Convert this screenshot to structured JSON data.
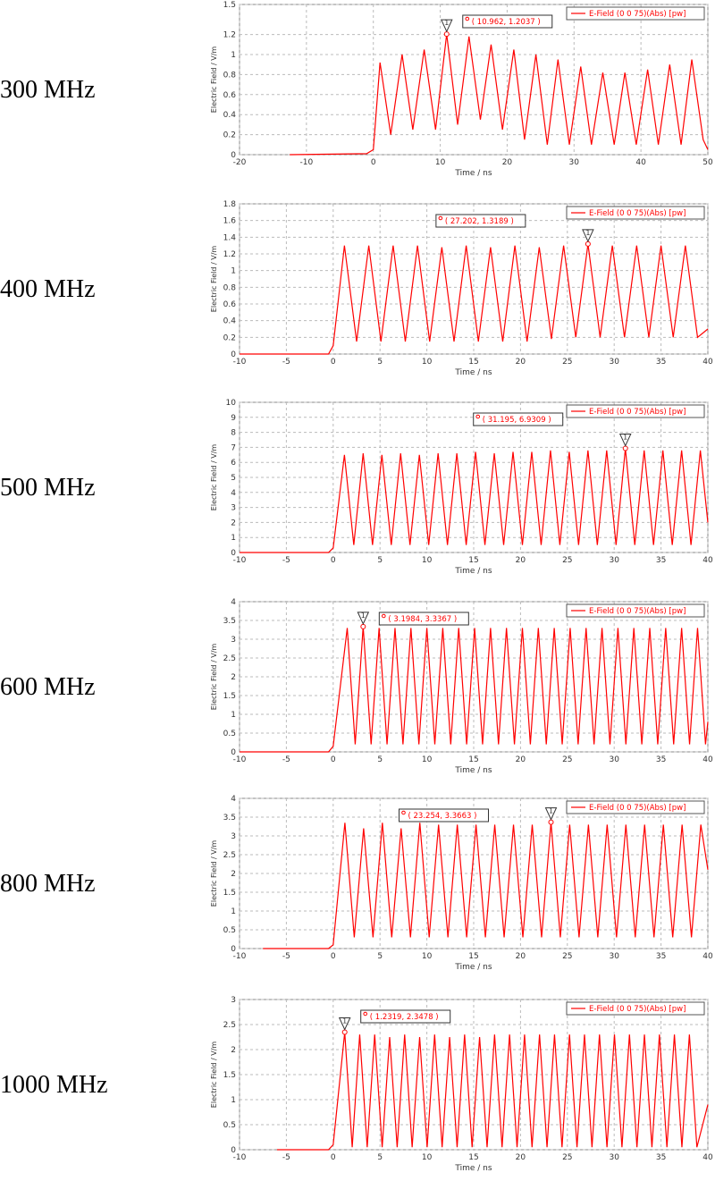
{
  "chart_data": [
    {
      "type": "line",
      "row_label": "300 MHz",
      "xlabel": "Time / ns",
      "ylabel": "Electric Field / V/m",
      "xlim": [
        -20,
        50
      ],
      "xticks": [
        -20,
        -10,
        0,
        10,
        20,
        30,
        40,
        50
      ],
      "ylim": [
        0,
        1.5
      ],
      "yticks": [
        0,
        0.2,
        0.4,
        0.6,
        0.8,
        1,
        1.2,
        1.5
      ],
      "grid": true,
      "series": [
        {
          "name": "E-Field (0 0 75)(Abs) [pw]",
          "color": "#ff0000",
          "x": [
            -12.5,
            -1,
            0,
            1,
            2.6,
            4.3,
            5.9,
            7.6,
            9.3,
            10.962,
            12.6,
            14.3,
            16,
            17.6,
            19.3,
            21,
            22.6,
            24.3,
            26,
            27.6,
            29.3,
            31,
            32.6,
            34.3,
            36,
            37.6,
            39.3,
            41,
            42.6,
            44.3,
            46,
            47.6,
            49.3,
            50
          ],
          "values": [
            0,
            0.01,
            0.05,
            0.92,
            0.2,
            1.0,
            0.25,
            1.05,
            0.25,
            1.2037,
            0.3,
            1.18,
            0.35,
            1.1,
            0.25,
            1.05,
            0.15,
            1.0,
            0.1,
            0.95,
            0.1,
            0.88,
            0.1,
            0.82,
            0.1,
            0.82,
            0.1,
            0.85,
            0.1,
            0.9,
            0.1,
            0.95,
            0.15,
            0.05
          ]
        }
      ],
      "marker": {
        "id": "1",
        "x": 10.962,
        "y": 1.2037,
        "label": "( 10.962, 1.2037 )"
      }
    },
    {
      "type": "line",
      "row_label": "400 MHz",
      "xlabel": "Time / ns",
      "ylabel": "Electric Field / V/m",
      "xlim": [
        -10,
        40
      ],
      "xticks": [
        -10,
        -5,
        0,
        5,
        10,
        15,
        20,
        25,
        30,
        35,
        40
      ],
      "ylim": [
        0,
        1.8
      ],
      "yticks": [
        0,
        0.2,
        0.4,
        0.6,
        0.8,
        1,
        1.2,
        1.4,
        1.6,
        1.8
      ],
      "grid": true,
      "series": [
        {
          "name": "E-Field (0 0 75)(Abs) [pw]",
          "color": "#ff0000",
          "x": [
            -10,
            -0.5,
            0,
            1.2,
            2.5,
            3.8,
            5.1,
            6.4,
            7.7,
            9.0,
            10.3,
            11.6,
            12.9,
            14.2,
            15.5,
            16.8,
            18.1,
            19.4,
            20.7,
            22.0,
            23.3,
            24.6,
            25.9,
            27.202,
            28.5,
            29.8,
            31.1,
            32.4,
            33.7,
            35.0,
            36.3,
            37.6,
            38.9,
            40
          ],
          "values": [
            0,
            0,
            0.1,
            1.3,
            0.15,
            1.3,
            0.15,
            1.3,
            0.15,
            1.3,
            0.15,
            1.28,
            0.15,
            1.3,
            0.15,
            1.28,
            0.15,
            1.3,
            0.15,
            1.28,
            0.18,
            1.3,
            0.2,
            1.3189,
            0.2,
            1.3,
            0.2,
            1.3,
            0.2,
            1.3,
            0.2,
            1.3,
            0.2,
            0.3
          ]
        }
      ],
      "marker": {
        "id": "1",
        "x": 27.202,
        "y": 1.3189,
        "label": "( 27.202, 1.3189 )"
      }
    },
    {
      "type": "line",
      "row_label": "500 MHz",
      "xlabel": "Time / ns",
      "ylabel": "Electric Field / V/m",
      "xlim": [
        -10,
        40
      ],
      "xticks": [
        -10,
        -5,
        0,
        5,
        10,
        15,
        20,
        25,
        30,
        35,
        40
      ],
      "ylim": [
        0,
        10
      ],
      "yticks": [
        0,
        1,
        2,
        3,
        4,
        5,
        6,
        7,
        8,
        9,
        10
      ],
      "grid": true,
      "series": [
        {
          "name": "E-Field (0 0 75)(Abs) [pw]",
          "color": "#ff0000",
          "x": [
            -10,
            -0.5,
            0,
            1.2,
            2.2,
            3.2,
            4.2,
            5.2,
            6.2,
            7.2,
            8.2,
            9.2,
            10.2,
            11.2,
            12.2,
            13.2,
            14.2,
            15.2,
            16.2,
            17.2,
            18.2,
            19.2,
            20.2,
            21.2,
            22.2,
            23.2,
            24.2,
            25.2,
            26.2,
            27.2,
            28.2,
            29.2,
            30.2,
            31.195,
            32.2,
            33.2,
            34.2,
            35.2,
            36.2,
            37.2,
            38.2,
            39.2,
            40
          ],
          "values": [
            0,
            0,
            0.3,
            6.5,
            0.5,
            6.6,
            0.5,
            6.5,
            0.5,
            6.6,
            0.5,
            6.5,
            0.5,
            6.6,
            0.5,
            6.6,
            0.5,
            6.7,
            0.5,
            6.6,
            0.5,
            6.7,
            0.5,
            6.7,
            0.5,
            6.8,
            0.5,
            6.7,
            0.5,
            6.8,
            0.5,
            6.8,
            0.5,
            6.9309,
            0.5,
            6.8,
            0.5,
            6.8,
            0.5,
            6.8,
            0.5,
            6.8,
            2.0
          ]
        }
      ],
      "marker": {
        "id": "1",
        "x": 31.195,
        "y": 6.9309,
        "label": "( 31.195, 6.9309 )"
      }
    },
    {
      "type": "line",
      "row_label": "600 MHz",
      "xlabel": "Time / ns",
      "ylabel": "Electric Field / V/m",
      "xlim": [
        -10,
        40
      ],
      "xticks": [
        -10,
        -5,
        0,
        5,
        10,
        15,
        20,
        25,
        30,
        35,
        40
      ],
      "ylim": [
        0,
        4
      ],
      "yticks": [
        0,
        0.5,
        1,
        1.5,
        2,
        2.5,
        3,
        3.5,
        4
      ],
      "grid": true,
      "series": [
        {
          "name": "E-Field (0 0 75)(Abs) [pw]",
          "color": "#ff0000",
          "x": [
            -10,
            -0.5,
            0,
            1.5,
            2.35,
            3.1984,
            4.05,
            4.9,
            5.75,
            6.6,
            7.45,
            8.3,
            9.15,
            10.0,
            10.85,
            11.7,
            12.55,
            13.4,
            14.25,
            15.1,
            15.95,
            16.8,
            17.65,
            18.5,
            19.35,
            20.2,
            21.05,
            21.9,
            22.75,
            23.6,
            24.45,
            25.3,
            26.15,
            27.0,
            27.85,
            28.7,
            29.55,
            30.4,
            31.25,
            32.1,
            32.95,
            33.8,
            34.65,
            35.5,
            36.35,
            37.2,
            38.05,
            38.9,
            39.75,
            40
          ],
          "values": [
            0,
            0,
            0.15,
            3.3,
            0.2,
            3.3367,
            0.2,
            3.3,
            0.2,
            3.3,
            0.2,
            3.3,
            0.2,
            3.3,
            0.2,
            3.3,
            0.2,
            3.3,
            0.2,
            3.3,
            0.2,
            3.3,
            0.2,
            3.3,
            0.2,
            3.3,
            0.2,
            3.3,
            0.2,
            3.3,
            0.2,
            3.3,
            0.2,
            3.3,
            0.2,
            3.3,
            0.2,
            3.3,
            0.2,
            3.3,
            0.2,
            3.3,
            0.2,
            3.3,
            0.2,
            3.3,
            0.2,
            3.3,
            0.2,
            0.8
          ]
        }
      ],
      "marker": {
        "id": "1",
        "x": 3.1984,
        "y": 3.3367,
        "label": "( 3.1984, 3.3367 )"
      }
    },
    {
      "type": "line",
      "row_label": "800 MHz",
      "xlabel": "Time / ns",
      "ylabel": "Electric Field / V/m",
      "xlim": [
        -10,
        40
      ],
      "xticks": [
        -10,
        -5,
        0,
        5,
        10,
        15,
        20,
        25,
        30,
        35,
        40
      ],
      "ylim": [
        0,
        4
      ],
      "yticks": [
        0,
        0.5,
        1,
        1.5,
        2,
        2.5,
        3,
        3.5,
        4
      ],
      "grid": true,
      "series": [
        {
          "name": "E-Field (0 0 75)(Abs) [pw]",
          "color": "#ff0000",
          "x": [
            -7.5,
            -0.5,
            0,
            1.25,
            2.25,
            3.25,
            4.25,
            5.25,
            6.25,
            7.25,
            8.25,
            9.25,
            10.25,
            11.25,
            12.25,
            13.25,
            14.25,
            15.25,
            16.25,
            17.25,
            18.25,
            19.25,
            20.25,
            21.25,
            22.25,
            23.254,
            24.25,
            25.25,
            26.25,
            27.25,
            28.25,
            29.25,
            30.25,
            31.25,
            32.25,
            33.25,
            34.25,
            35.25,
            36.25,
            37.25,
            38.25,
            39.25,
            40
          ],
          "values": [
            0,
            0,
            0.1,
            3.35,
            0.3,
            3.2,
            0.3,
            3.35,
            0.3,
            3.2,
            0.3,
            3.35,
            0.3,
            3.3,
            0.3,
            3.3,
            0.3,
            3.3,
            0.3,
            3.3,
            0.3,
            3.3,
            0.3,
            3.3,
            0.3,
            3.3663,
            0.3,
            3.3,
            0.3,
            3.3,
            0.3,
            3.3,
            0.3,
            3.3,
            0.3,
            3.3,
            0.3,
            3.3,
            0.3,
            3.3,
            0.3,
            3.3,
            2.1
          ]
        }
      ],
      "marker": {
        "id": "1",
        "x": 23.254,
        "y": 3.3663,
        "label": "( 23.254, 3.3663 )"
      }
    },
    {
      "type": "line",
      "row_label": "1000 MHz",
      "xlabel": "Time / ns",
      "ylabel": "Electric Field / V/m",
      "xlim": [
        -10,
        40
      ],
      "xticks": [
        -10,
        -5,
        0,
        5,
        10,
        15,
        20,
        25,
        30,
        35,
        40
      ],
      "ylim": [
        0,
        3
      ],
      "yticks": [
        0,
        0.5,
        1,
        1.5,
        2,
        2.5,
        3
      ],
      "grid": true,
      "series": [
        {
          "name": "E-Field (0 0 75)(Abs) [pw]",
          "color": "#ff0000",
          "x": [
            -6,
            -0.5,
            0,
            1.2319,
            2.03,
            2.83,
            3.63,
            4.43,
            5.23,
            6.03,
            6.83,
            7.63,
            8.43,
            9.23,
            10.03,
            10.83,
            11.63,
            12.43,
            13.23,
            14.03,
            14.83,
            15.63,
            16.43,
            17.23,
            18.03,
            18.83,
            19.63,
            20.43,
            21.23,
            22.03,
            22.83,
            23.63,
            24.43,
            25.23,
            26.03,
            26.83,
            27.63,
            28.43,
            29.23,
            30.03,
            30.83,
            31.63,
            32.43,
            33.23,
            34.03,
            34.83,
            35.63,
            36.43,
            37.23,
            38.03,
            38.83,
            40
          ],
          "values": [
            0,
            0,
            0.1,
            2.3478,
            0.05,
            2.3,
            0.05,
            2.3,
            0.05,
            2.25,
            0.05,
            2.3,
            0.05,
            2.25,
            0.05,
            2.3,
            0.05,
            2.25,
            0.05,
            2.3,
            0.05,
            2.25,
            0.05,
            2.3,
            0.05,
            2.3,
            0.05,
            2.3,
            0.05,
            2.3,
            0.05,
            2.3,
            0.05,
            2.3,
            0.05,
            2.3,
            0.05,
            2.3,
            0.05,
            2.3,
            0.05,
            2.3,
            0.05,
            2.3,
            0.05,
            2.3,
            0.05,
            2.3,
            0.05,
            2.3,
            0.05,
            0.9
          ]
        }
      ],
      "marker": {
        "id": "1",
        "x": 1.2319,
        "y": 2.3478,
        "label": "( 1.2319, 2.3478 )"
      }
    }
  ]
}
